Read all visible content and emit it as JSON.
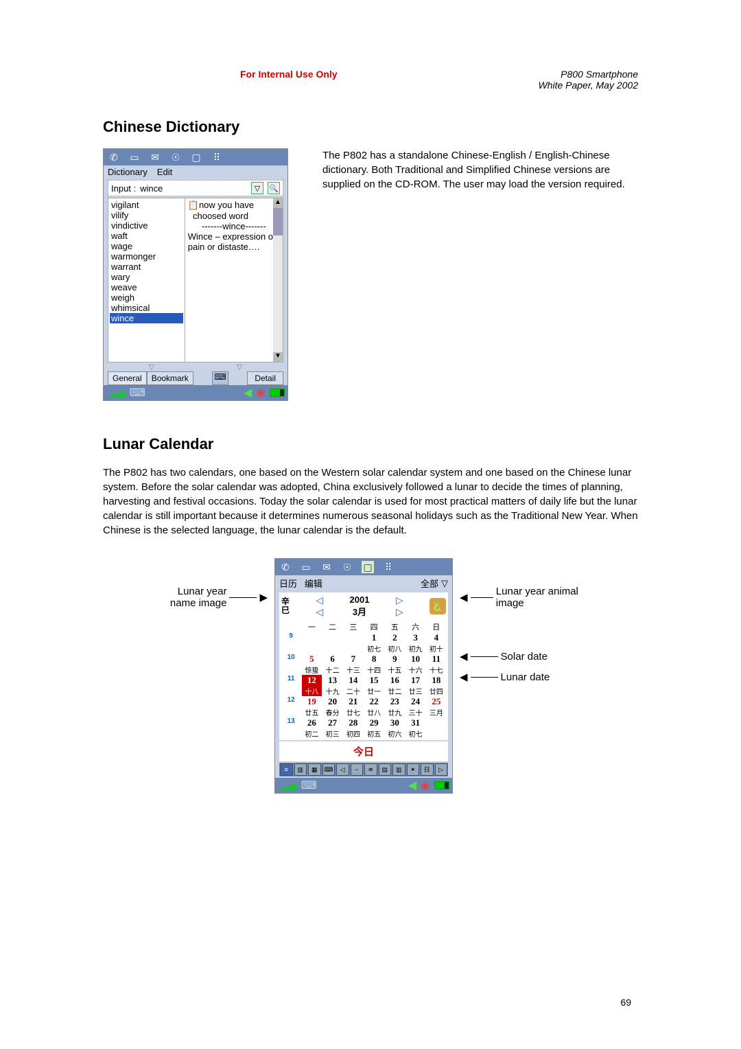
{
  "header": {
    "internal": "For Internal Use Only",
    "product": "P800 Smartphone",
    "doc": "White Paper, May 2002"
  },
  "dictionary": {
    "heading": "Chinese Dictionary",
    "menu": {
      "dictionary": "Dictionary",
      "edit": "Edit"
    },
    "input_label": "Input :",
    "input_value": "wince",
    "words": [
      "vigilant",
      "vilify",
      "vindictive",
      "waft",
      "wage",
      "warmonger",
      "warrant",
      "wary",
      "weave",
      "weigh",
      "whimsical",
      "wince"
    ],
    "selected_word": "wince",
    "def_intro1": "now you have",
    "def_intro2": "choosed word",
    "def_sep": "-------wince-------",
    "def_body": "Wince – expression of pain or distaste….",
    "tabs": {
      "general": "General",
      "bookmark": "Bookmark",
      "detail": "Detail"
    },
    "blurb": "The P802 has a standalone Chinese-English / English-Chinese dictionary. Both Traditional and Simplified Chinese versions are supplied on the CD-ROM. The user may load the version required."
  },
  "lunar": {
    "heading": "Lunar Calendar",
    "para": "The P802 has two calendars, one based on the Western solar calendar system and one based on the Chinese lunar system. Before the solar calendar was adopted, China exclusively followed a lunar to decide the times of planning, harvesting and festival occasions. Today the solar calendar is used for most practical matters of daily life but the lunar calendar is still important because it determines numerous seasonal holidays such as the Traditional New Year. When Chinese is the selected language, the lunar calendar is the default.",
    "menu": {
      "cal": "日历",
      "edit": "编辑",
      "all": "全部"
    },
    "year": "2001",
    "month": "3月",
    "stem1": "辛",
    "stem2": "巳",
    "zodiac": "🐍",
    "dow": [
      "一",
      "二",
      "三",
      "四",
      "五",
      "六",
      "日"
    ],
    "weeks_nums": [
      "9",
      "10",
      "11",
      "12",
      "13"
    ],
    "grid": [
      [
        {
          "s": "",
          "l": ""
        },
        {
          "s": "",
          "l": ""
        },
        {
          "s": "",
          "l": ""
        },
        {
          "s": "1",
          "l": "初七"
        },
        {
          "s": "2",
          "l": "初八"
        },
        {
          "s": "3",
          "l": "初九"
        },
        {
          "s": "4",
          "l": "初十"
        }
      ],
      [
        {
          "s": "5",
          "l": "惊蛰",
          "red": true
        },
        {
          "s": "6",
          "l": "十二"
        },
        {
          "s": "7",
          "l": "十三"
        },
        {
          "s": "8",
          "l": "十四"
        },
        {
          "s": "9",
          "l": "十五"
        },
        {
          "s": "10",
          "l": "十六"
        },
        {
          "s": "11",
          "l": "十七"
        }
      ],
      [
        {
          "s": "12",
          "l": "十八",
          "today": true
        },
        {
          "s": "13",
          "l": "十九"
        },
        {
          "s": "14",
          "l": "二十"
        },
        {
          "s": "15",
          "l": "廿一"
        },
        {
          "s": "16",
          "l": "廿二"
        },
        {
          "s": "17",
          "l": "廿三"
        },
        {
          "s": "18",
          "l": "廿四"
        }
      ],
      [
        {
          "s": "19",
          "l": "廿五",
          "red": true
        },
        {
          "s": "20",
          "l": "春分"
        },
        {
          "s": "21",
          "l": "廿七"
        },
        {
          "s": "22",
          "l": "廿八"
        },
        {
          "s": "23",
          "l": "廿九"
        },
        {
          "s": "24",
          "l": "三十"
        },
        {
          "s": "25",
          "l": "三月",
          "red": true
        }
      ],
      [
        {
          "s": "26",
          "l": "初二"
        },
        {
          "s": "27",
          "l": "初三"
        },
        {
          "s": "28",
          "l": "初四"
        },
        {
          "s": "29",
          "l": "初五"
        },
        {
          "s": "30",
          "l": "初六"
        },
        {
          "s": "31",
          "l": "初七"
        },
        {
          "s": "",
          "l": ""
        }
      ]
    ],
    "today_label": "今日",
    "annot": {
      "year_name": "Lunar year name image",
      "animal": "Lunar year animal image",
      "solar": "Solar date",
      "lunar": "Lunar date"
    }
  },
  "page_number": "69",
  "colors": {
    "accent": "#6a86b4",
    "red": "#cc0000",
    "panel": "#c8d4e6",
    "highlight": "#2a5ab8"
  }
}
